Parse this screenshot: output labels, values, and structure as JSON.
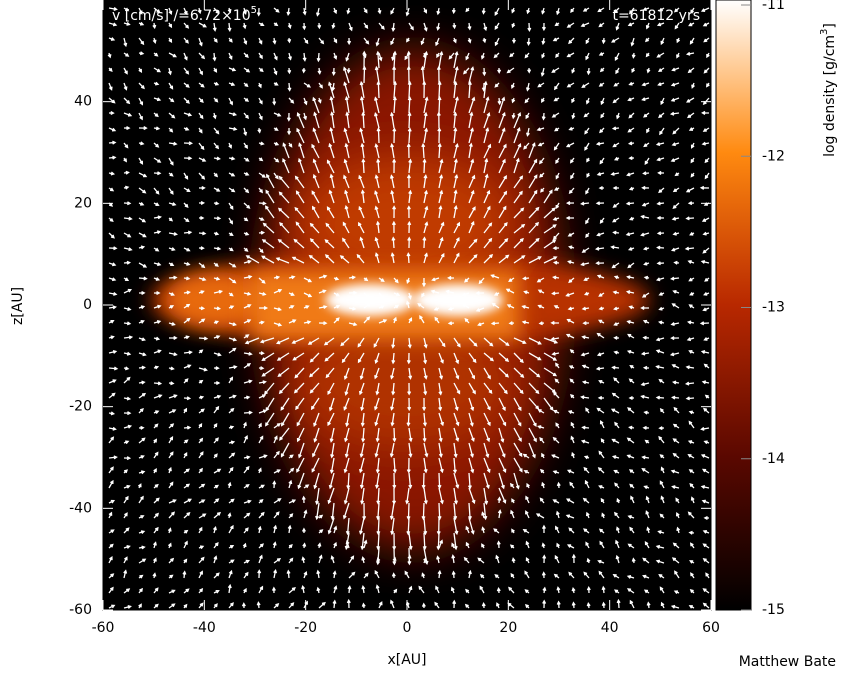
{
  "chart_data": {
    "type": "heatmap",
    "velocity_label": "v [cm/s]  /=6.72×10",
    "velocity_exponent": "5",
    "time_label": "t=61812 yrs",
    "xlabel": "x[AU]",
    "ylabel": "z[AU]",
    "xlim": [
      -60,
      60
    ],
    "xticks": [
      -60,
      -40,
      -20,
      0,
      20,
      40,
      60
    ],
    "ylim": [
      -60,
      60
    ],
    "yticks": [
      -60,
      -40,
      -20,
      0,
      20,
      40
    ],
    "colorbar": {
      "label_start": "log density [g/cm",
      "label_power": "3",
      "label_end": "]",
      "lim": [
        -15,
        -11
      ],
      "ticks": [
        -15,
        -14,
        -13,
        -12,
        -11
      ]
    },
    "credit": "Matthew Bate"
  }
}
